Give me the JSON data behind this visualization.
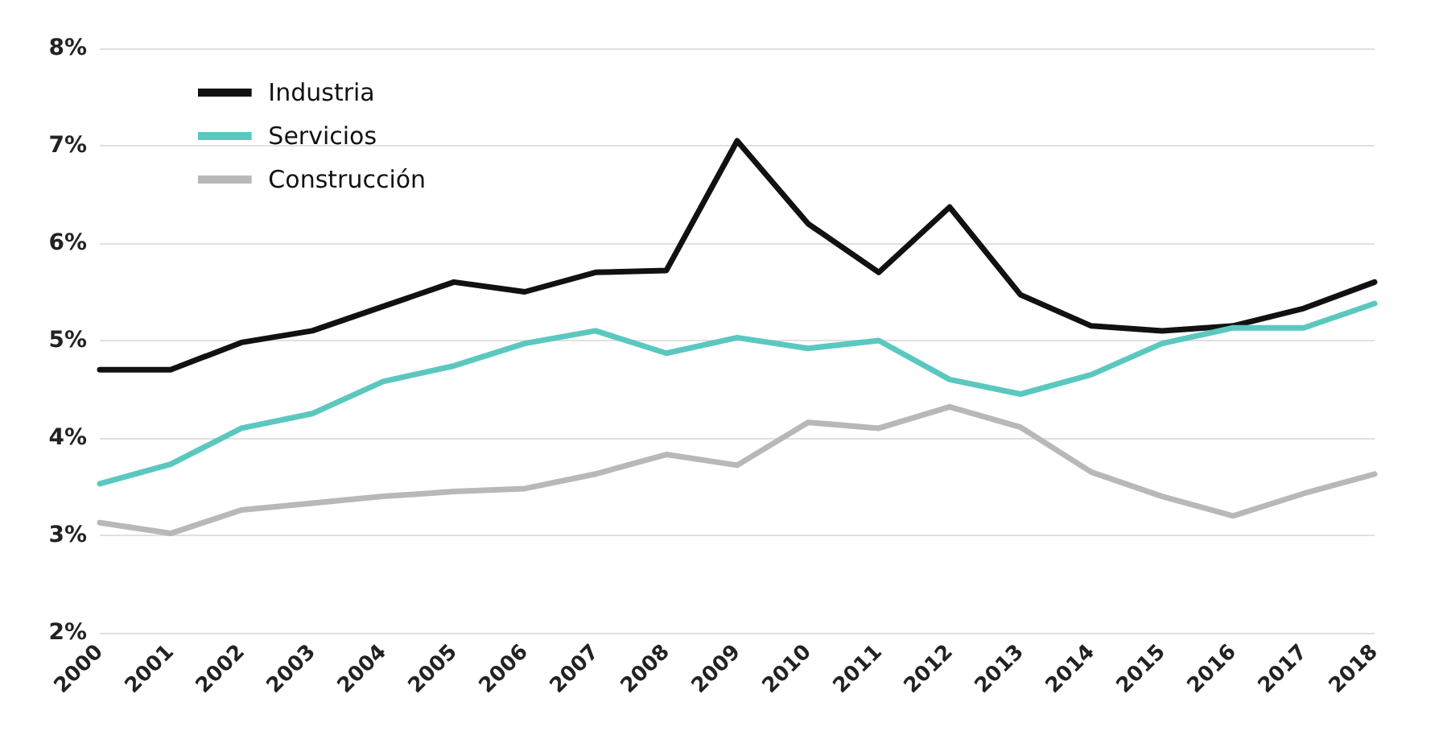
{
  "chart_data": {
    "type": "line",
    "categories": [
      "2000",
      "2001",
      "2002",
      "2003",
      "2004",
      "2005",
      "2006",
      "2007",
      "2008",
      "2009",
      "2010",
      "2011",
      "2012",
      "2013",
      "2014",
      "2015",
      "2016",
      "2017",
      "2018"
    ],
    "series": [
      {
        "name": "Industria",
        "color": "#111111",
        "values": [
          4.7,
          4.7,
          4.98,
          5.1,
          5.35,
          5.6,
          5.5,
          5.7,
          5.72,
          7.05,
          6.2,
          5.7,
          6.37,
          5.47,
          5.15,
          5.1,
          5.15,
          5.33,
          5.6
        ]
      },
      {
        "name": "Servicios",
        "color": "#5bc8bf",
        "values": [
          3.53,
          3.73,
          4.1,
          4.25,
          4.58,
          4.74,
          4.97,
          5.1,
          4.87,
          5.03,
          4.92,
          5.0,
          4.6,
          4.45,
          4.65,
          4.97,
          5.13,
          5.13,
          5.38
        ]
      },
      {
        "name": "Construcción",
        "color": "#b8b8b8",
        "values": [
          3.13,
          3.02,
          3.26,
          3.33,
          3.4,
          3.45,
          3.48,
          3.63,
          3.83,
          3.72,
          4.16,
          4.1,
          4.32,
          4.11,
          3.65,
          3.4,
          3.2,
          3.43,
          3.63
        ]
      }
    ],
    "ylim": [
      2,
      8
    ],
    "yticks": [
      {
        "value": 2,
        "label": "2%"
      },
      {
        "value": 3,
        "label": "3%"
      },
      {
        "value": 4,
        "label": "4%"
      },
      {
        "value": 5,
        "label": "5%"
      },
      {
        "value": 6,
        "label": "6%"
      },
      {
        "value": 7,
        "label": "7%"
      },
      {
        "value": 8,
        "label": "8%"
      }
    ],
    "grid": "y",
    "legend": "top left",
    "marker": "none",
    "line_style": "solid"
  }
}
